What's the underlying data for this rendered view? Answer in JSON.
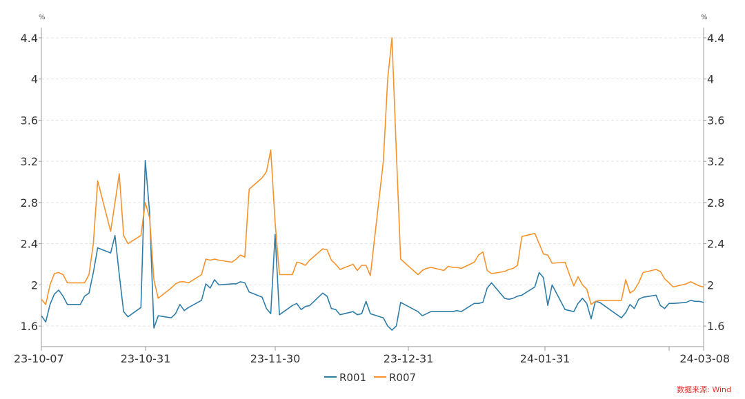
{
  "chart_data": {
    "type": "line",
    "title": "",
    "xlabel": "",
    "ylabel": "%",
    "y2label": "%",
    "ylim": [
      1.4,
      4.5
    ],
    "yticks": [
      "1.6",
      "2",
      "2.4",
      "2.8",
      "3.2",
      "3.6",
      "4",
      "4.4"
    ],
    "xticks": [
      "23-10-07",
      "23-10-31",
      "23-11-30",
      "23-12-31",
      "24-01-31",
      "24-03-08"
    ],
    "grid": true,
    "legend_position": "bottom",
    "source": "数据来源: Wind",
    "series": [
      {
        "name": "R001",
        "color": "#2e7ca8",
        "points": [
          [
            "2023-10-07",
            1.7
          ],
          [
            "2023-10-08",
            1.64
          ],
          [
            "2023-10-09",
            1.81
          ],
          [
            "2023-10-10",
            1.91
          ],
          [
            "2023-10-11",
            1.95
          ],
          [
            "2023-10-12",
            1.89
          ],
          [
            "2023-10-13",
            1.81
          ],
          [
            "2023-10-16",
            1.81
          ],
          [
            "2023-10-17",
            1.89
          ],
          [
            "2023-10-18",
            1.92
          ],
          [
            "2023-10-19",
            2.12
          ],
          [
            "2023-10-20",
            2.36
          ],
          [
            "2023-10-23",
            2.31
          ],
          [
            "2023-10-24",
            2.48
          ],
          [
            "2023-10-25",
            2.1
          ],
          [
            "2023-10-26",
            1.74
          ],
          [
            "2023-10-27",
            1.69
          ],
          [
            "2023-10-30",
            1.78
          ],
          [
            "2023-10-31",
            3.21
          ],
          [
            "2023-11-01",
            2.7
          ],
          [
            "2023-11-02",
            1.58
          ],
          [
            "2023-11-03",
            1.7
          ],
          [
            "2023-11-06",
            1.68
          ],
          [
            "2023-11-07",
            1.72
          ],
          [
            "2023-11-08",
            1.81
          ],
          [
            "2023-11-09",
            1.75
          ],
          [
            "2023-11-10",
            1.78
          ],
          [
            "2023-11-13",
            1.85
          ],
          [
            "2023-11-14",
            2.01
          ],
          [
            "2023-11-15",
            1.97
          ],
          [
            "2023-11-16",
            2.05
          ],
          [
            "2023-11-17",
            2.0
          ],
          [
            "2023-11-20",
            2.01
          ],
          [
            "2023-11-21",
            2.01
          ],
          [
            "2023-11-22",
            2.03
          ],
          [
            "2023-11-23",
            2.02
          ],
          [
            "2023-11-24",
            1.93
          ],
          [
            "2023-11-27",
            1.88
          ],
          [
            "2023-11-28",
            1.77
          ],
          [
            "2023-11-29",
            1.72
          ],
          [
            "2023-11-30",
            2.49
          ],
          [
            "2023-12-01",
            1.71
          ],
          [
            "2023-12-04",
            1.8
          ],
          [
            "2023-12-05",
            1.82
          ],
          [
            "2023-12-06",
            1.76
          ],
          [
            "2023-12-07",
            1.79
          ],
          [
            "2023-12-08",
            1.8
          ],
          [
            "2023-12-11",
            1.92
          ],
          [
            "2023-12-12",
            1.89
          ],
          [
            "2023-12-13",
            1.77
          ],
          [
            "2023-12-14",
            1.76
          ],
          [
            "2023-12-15",
            1.71
          ],
          [
            "2023-12-18",
            1.74
          ],
          [
            "2023-12-19",
            1.71
          ],
          [
            "2023-12-20",
            1.72
          ],
          [
            "2023-12-21",
            1.84
          ],
          [
            "2023-12-22",
            1.72
          ],
          [
            "2023-12-25",
            1.68
          ],
          [
            "2023-12-26",
            1.6
          ],
          [
            "2023-12-27",
            1.56
          ],
          [
            "2023-12-28",
            1.6
          ],
          [
            "2023-12-29",
            1.83
          ],
          [
            "2024-01-02",
            1.74
          ],
          [
            "2024-01-03",
            1.7
          ],
          [
            "2024-01-04",
            1.72
          ],
          [
            "2024-01-05",
            1.74
          ],
          [
            "2024-01-08",
            1.74
          ],
          [
            "2024-01-09",
            1.74
          ],
          [
            "2024-01-10",
            1.74
          ],
          [
            "2024-01-11",
            1.75
          ],
          [
            "2024-01-12",
            1.74
          ],
          [
            "2024-01-15",
            1.82
          ],
          [
            "2024-01-16",
            1.82
          ],
          [
            "2024-01-17",
            1.83
          ],
          [
            "2024-01-18",
            1.97
          ],
          [
            "2024-01-19",
            2.02
          ],
          [
            "2024-01-22",
            1.87
          ],
          [
            "2024-01-23",
            1.86
          ],
          [
            "2024-01-24",
            1.87
          ],
          [
            "2024-01-25",
            1.89
          ],
          [
            "2024-01-26",
            1.9
          ],
          [
            "2024-01-29",
            1.98
          ],
          [
            "2024-01-30",
            2.12
          ],
          [
            "2024-01-31",
            2.07
          ],
          [
            "2024-02-01",
            1.8
          ],
          [
            "2024-02-02",
            2.0
          ],
          [
            "2024-02-05",
            1.76
          ],
          [
            "2024-02-06",
            1.75
          ],
          [
            "2024-02-07",
            1.74
          ],
          [
            "2024-02-08",
            1.82
          ],
          [
            "2024-02-09",
            1.87
          ],
          [
            "2024-02-10",
            1.82
          ],
          [
            "2024-02-11",
            1.67
          ],
          [
            "2024-02-12",
            1.84
          ],
          [
            "2024-02-13",
            1.83
          ],
          [
            "2024-02-18",
            1.68
          ],
          [
            "2024-02-19",
            1.73
          ],
          [
            "2024-02-20",
            1.81
          ],
          [
            "2024-02-21",
            1.77
          ],
          [
            "2024-02-22",
            1.86
          ],
          [
            "2024-02-23",
            1.88
          ],
          [
            "2024-02-26",
            1.9
          ],
          [
            "2024-02-27",
            1.8
          ],
          [
            "2024-02-28",
            1.77
          ],
          [
            "2024-02-29",
            1.82
          ],
          [
            "2024-03-01",
            1.82
          ],
          [
            "2024-03-04",
            1.83
          ],
          [
            "2024-03-05",
            1.85
          ],
          [
            "2024-03-06",
            1.84
          ],
          [
            "2024-03-07",
            1.84
          ],
          [
            "2024-03-08",
            1.83
          ]
        ]
      },
      {
        "name": "R007",
        "color": "#f5922b",
        "points": [
          [
            "2023-10-07",
            1.86
          ],
          [
            "2023-10-08",
            1.81
          ],
          [
            "2023-10-09",
            2.0
          ],
          [
            "2023-10-10",
            2.11
          ],
          [
            "2023-10-11",
            2.12
          ],
          [
            "2023-10-12",
            2.1
          ],
          [
            "2023-10-13",
            2.02
          ],
          [
            "2023-10-16",
            2.02
          ],
          [
            "2023-10-17",
            2.02
          ],
          [
            "2023-10-18",
            2.1
          ],
          [
            "2023-10-19",
            2.4
          ],
          [
            "2023-10-20",
            3.01
          ],
          [
            "2023-10-23",
            2.52
          ],
          [
            "2023-10-24",
            2.8
          ],
          [
            "2023-10-25",
            3.08
          ],
          [
            "2023-10-26",
            2.48
          ],
          [
            "2023-10-27",
            2.4
          ],
          [
            "2023-10-30",
            2.48
          ],
          [
            "2023-10-31",
            2.8
          ],
          [
            "2023-11-01",
            2.65
          ],
          [
            "2023-11-02",
            2.05
          ],
          [
            "2023-11-03",
            1.87
          ],
          [
            "2023-11-06",
            1.97
          ],
          [
            "2023-11-07",
            2.01
          ],
          [
            "2023-11-08",
            2.03
          ],
          [
            "2023-11-09",
            2.03
          ],
          [
            "2023-11-10",
            2.02
          ],
          [
            "2023-11-13",
            2.1
          ],
          [
            "2023-11-14",
            2.25
          ],
          [
            "2023-11-15",
            2.24
          ],
          [
            "2023-11-16",
            2.25
          ],
          [
            "2023-11-17",
            2.24
          ],
          [
            "2023-11-20",
            2.22
          ],
          [
            "2023-11-21",
            2.25
          ],
          [
            "2023-11-22",
            2.29
          ],
          [
            "2023-11-23",
            2.27
          ],
          [
            "2023-11-24",
            2.93
          ],
          [
            "2023-11-27",
            3.04
          ],
          [
            "2023-11-28",
            3.1
          ],
          [
            "2023-11-29",
            3.31
          ],
          [
            "2023-11-30",
            2.61
          ],
          [
            "2023-12-01",
            2.1
          ],
          [
            "2023-12-04",
            2.1
          ],
          [
            "2023-12-05",
            2.22
          ],
          [
            "2023-12-06",
            2.21
          ],
          [
            "2023-12-07",
            2.19
          ],
          [
            "2023-12-08",
            2.24
          ],
          [
            "2023-12-11",
            2.35
          ],
          [
            "2023-12-12",
            2.34
          ],
          [
            "2023-12-13",
            2.24
          ],
          [
            "2023-12-14",
            2.2
          ],
          [
            "2023-12-15",
            2.15
          ],
          [
            "2023-12-18",
            2.2
          ],
          [
            "2023-12-19",
            2.14
          ],
          [
            "2023-12-20",
            2.19
          ],
          [
            "2023-12-21",
            2.19
          ],
          [
            "2023-12-22",
            2.09
          ],
          [
            "2023-12-25",
            3.2
          ],
          [
            "2023-12-26",
            4.0
          ],
          [
            "2023-12-27",
            4.4
          ],
          [
            "2023-12-28",
            3.3
          ],
          [
            "2023-12-29",
            2.25
          ],
          [
            "2024-01-02",
            2.1
          ],
          [
            "2024-01-03",
            2.14
          ],
          [
            "2024-01-04",
            2.16
          ],
          [
            "2024-01-05",
            2.17
          ],
          [
            "2024-01-08",
            2.14
          ],
          [
            "2024-01-09",
            2.18
          ],
          [
            "2024-01-10",
            2.17
          ],
          [
            "2024-01-11",
            2.17
          ],
          [
            "2024-01-12",
            2.16
          ],
          [
            "2024-01-15",
            2.22
          ],
          [
            "2024-01-16",
            2.29
          ],
          [
            "2024-01-17",
            2.32
          ],
          [
            "2024-01-18",
            2.14
          ],
          [
            "2024-01-19",
            2.11
          ],
          [
            "2024-01-22",
            2.13
          ],
          [
            "2024-01-23",
            2.15
          ],
          [
            "2024-01-24",
            2.16
          ],
          [
            "2024-01-25",
            2.19
          ],
          [
            "2024-01-26",
            2.47
          ],
          [
            "2024-01-29",
            2.5
          ],
          [
            "2024-01-30",
            2.4
          ],
          [
            "2024-01-31",
            2.3
          ],
          [
            "2024-02-01",
            2.29
          ],
          [
            "2024-02-02",
            2.21
          ],
          [
            "2024-02-05",
            2.22
          ],
          [
            "2024-02-06",
            2.1
          ],
          [
            "2024-02-07",
            1.99
          ],
          [
            "2024-02-08",
            2.08
          ],
          [
            "2024-02-09",
            2.0
          ],
          [
            "2024-02-10",
            1.96
          ],
          [
            "2024-02-11",
            1.81
          ],
          [
            "2024-02-12",
            1.84
          ],
          [
            "2024-02-13",
            1.85
          ],
          [
            "2024-02-18",
            1.85
          ],
          [
            "2024-02-19",
            2.05
          ],
          [
            "2024-02-20",
            1.92
          ],
          [
            "2024-02-21",
            1.95
          ],
          [
            "2024-02-22",
            2.02
          ],
          [
            "2024-02-23",
            2.12
          ],
          [
            "2024-02-26",
            2.15
          ],
          [
            "2024-02-27",
            2.13
          ],
          [
            "2024-02-28",
            2.06
          ],
          [
            "2024-02-29",
            2.02
          ],
          [
            "2024-03-01",
            1.98
          ],
          [
            "2024-03-04",
            2.01
          ],
          [
            "2024-03-05",
            2.03
          ],
          [
            "2024-03-06",
            2.01
          ],
          [
            "2024-03-07",
            1.99
          ],
          [
            "2024-03-08",
            1.98
          ]
        ]
      }
    ]
  }
}
